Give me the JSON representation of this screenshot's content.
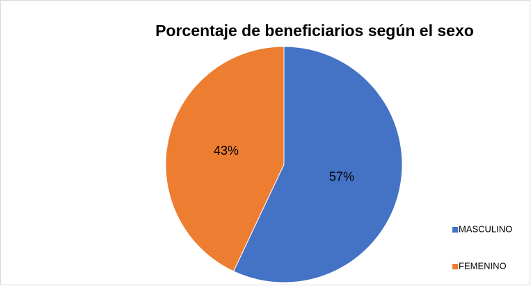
{
  "chart_data": {
    "type": "pie",
    "title": "Porcentaje de beneficiarios según el sexo",
    "categories": [
      "MASCULINO",
      "FEMENINO"
    ],
    "values": [
      57,
      43
    ],
    "value_labels": [
      "57%",
      "43%"
    ],
    "colors": [
      "#4472c4",
      "#ed7d31"
    ],
    "legend": "right"
  }
}
